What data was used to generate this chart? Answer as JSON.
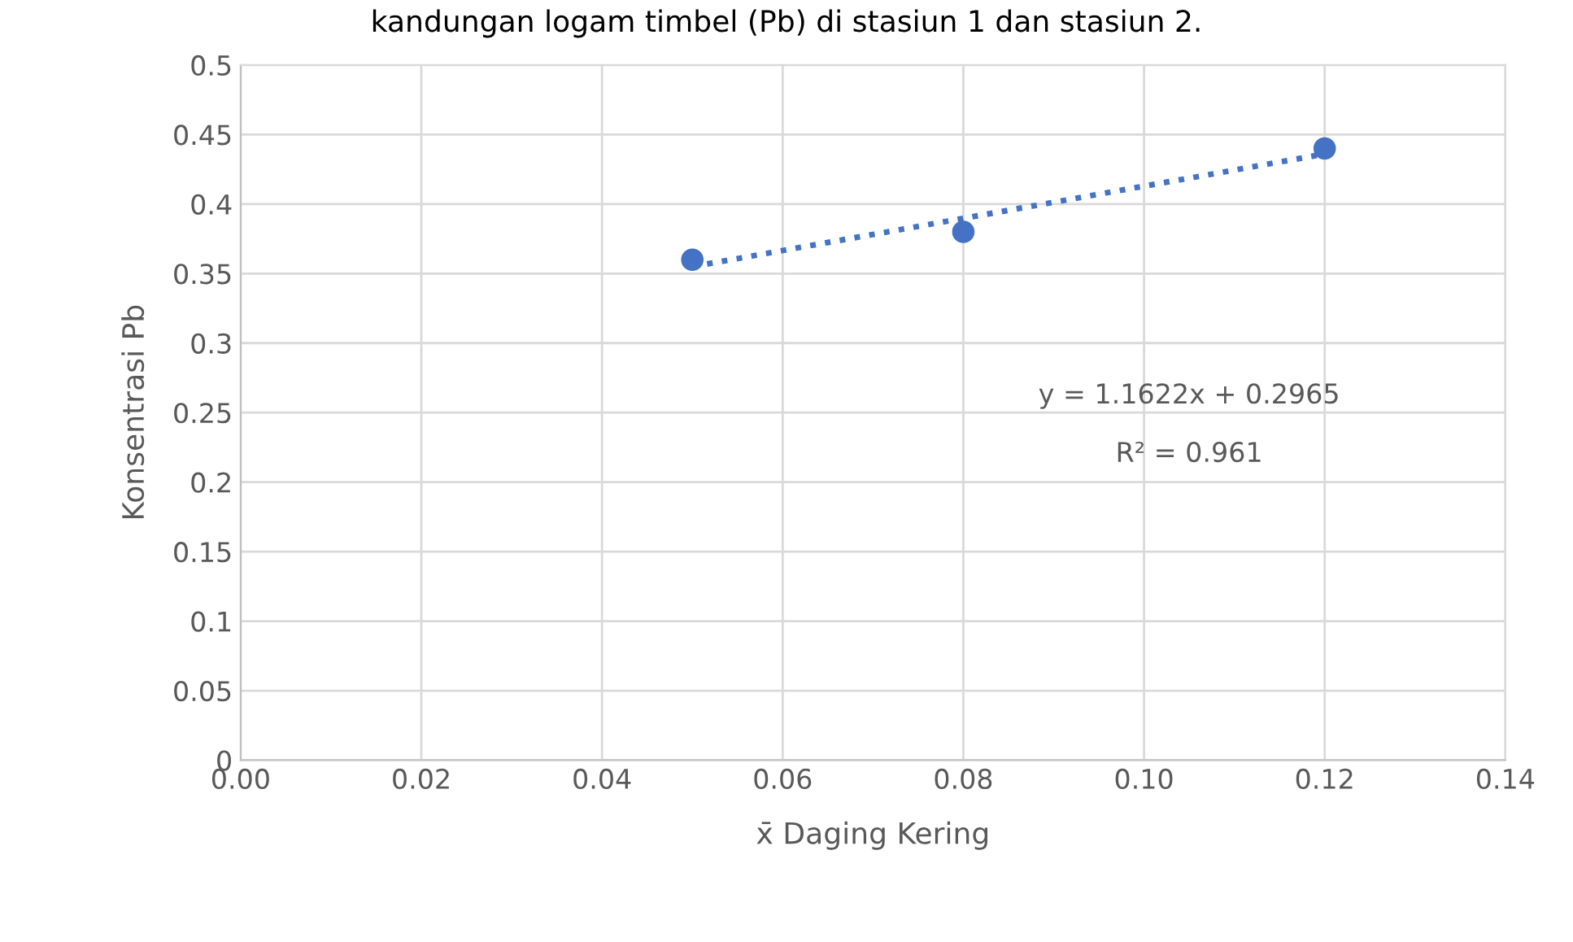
{
  "chart_data": {
    "type": "scatter",
    "title": "kandungan logam timbel (Pb) di stasiun 1 dan stasiun 2.",
    "xlabel": "x̄ Daging Kering",
    "ylabel": "Konsentrasi Pb",
    "annotations": [
      "y = 1.1622x + 0.2965",
      "R² = 0.961"
    ],
    "series": [
      {
        "color": "#4472c4",
        "marker": "circle",
        "x": [
          0.05,
          0.08,
          0.12
        ],
        "values": [
          0.36,
          0.38,
          0.44
        ]
      },
      {
        "type": "line",
        "color": "#4472c4",
        "line_style": "dotted",
        "marker": "none",
        "x": [
          0.05,
          0.12
        ],
        "values": [
          0.355,
          0.436
        ]
      }
    ],
    "xlim": [
      0,
      0.14
    ],
    "xticks": [
      {
        "value": 0,
        "label": "0.00"
      },
      {
        "value": 0.02,
        "label": "0.02"
      },
      {
        "value": 0.04,
        "label": "0.04"
      },
      {
        "value": 0.06,
        "label": "0.06"
      },
      {
        "value": 0.08,
        "label": "0.08"
      },
      {
        "value": 0.1,
        "label": "0.10"
      },
      {
        "value": 0.12,
        "label": "0.12"
      },
      {
        "value": 0.14,
        "label": "0.14"
      }
    ],
    "ylim": [
      0,
      0.5
    ],
    "yticks": [
      0,
      0.05,
      0.1,
      0.15,
      0.2,
      0.25,
      0.3,
      0.35,
      0.4,
      0.45,
      0.5
    ],
    "grid": true,
    "legend": false
  }
}
